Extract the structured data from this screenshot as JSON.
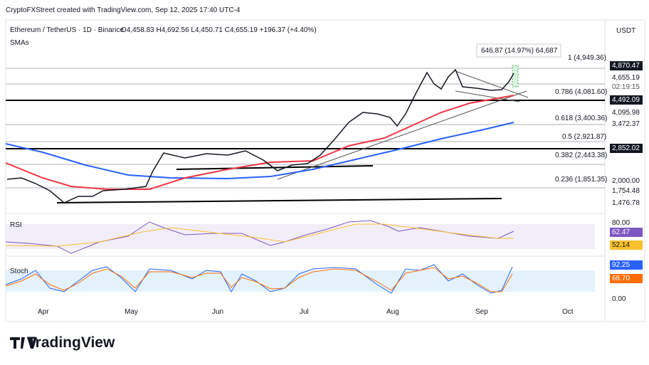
{
  "header": {
    "credit": "CryptoFXStreet created with TradingView.com, Sep 12, 2025 17:40 UTC-4"
  },
  "legend": {
    "symbol": "Ethereum / TetherUS · 1D · Binance",
    "ohlc": "O4,458.83 H4,692.56 L4,450.71 C4,655.19 +196.37 (+4.40%)",
    "indicator": "SMAs"
  },
  "currency": "USDT",
  "measure": "646.87 (14.97%) 64,687",
  "fib_labels": [
    "1 (4,949.36)",
    "0.786 (4,081.60)",
    "0.618 (3,400.36)",
    "0.5 (2,921.87)",
    "0.382 (2,443.38)",
    "0.236 (1,851.35)"
  ],
  "price_axis": [
    "4,870.47",
    "4,655.19",
    "02:19:15",
    "4,492.09",
    "4,095.98",
    "3,472.37",
    "2,852.02",
    "2,000.00",
    "1,754.48",
    "1,476.78"
  ],
  "rsi": {
    "label": "RSI",
    "axis": [
      "80.00",
      "62.47",
      "52.14"
    ]
  },
  "stoch": {
    "label": "Stoch",
    "axis": [
      "92.25",
      "68.70",
      "0.00"
    ]
  },
  "months": [
    "Apr",
    "May",
    "Jun",
    "Jul",
    "Aug",
    "Sep",
    "Oct"
  ],
  "brand": "TradingView"
}
